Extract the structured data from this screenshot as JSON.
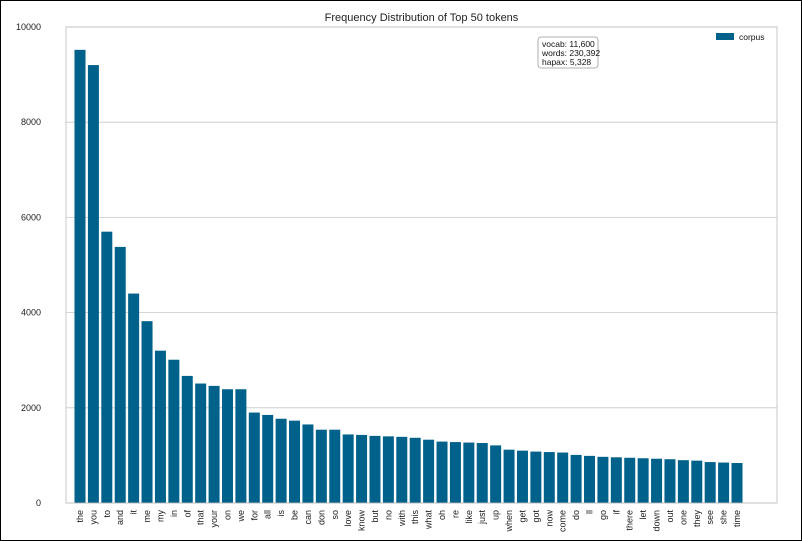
{
  "chart_data": {
    "type": "bar",
    "title": "Frequency Distribution of Top 50 tokens",
    "xlabel": "",
    "ylabel": "",
    "ylim": [
      0,
      10000
    ],
    "yticks": [
      "0",
      "2000",
      "4000",
      "6000",
      "8000",
      "10000"
    ],
    "grid": true,
    "legend": {
      "placement": "top-right",
      "label": "corpus"
    },
    "bar_color": "#00628b",
    "annotation_box": [
      "vocab: 11,600",
      "words: 230,392",
      "hapax: 5,328"
    ],
    "categories": [
      "the",
      "you",
      "to",
      "and",
      "it",
      "me",
      "my",
      "in",
      "of",
      "that",
      "your",
      "on",
      "we",
      "for",
      "all",
      "is",
      "be",
      "can",
      "don",
      "so",
      "love",
      "know",
      "but",
      "no",
      "with",
      "this",
      "what",
      "oh",
      "re",
      "like",
      "just",
      "up",
      "when",
      "get",
      "got",
      "now",
      "come",
      "do",
      "ll",
      "go",
      "if",
      "there",
      "let",
      "down",
      "out",
      "one",
      "they",
      "see",
      "she",
      "time"
    ],
    "values": [
      9520,
      9200,
      5700,
      5380,
      4400,
      3820,
      3200,
      3010,
      2670,
      2510,
      2460,
      2390,
      2390,
      1900,
      1850,
      1770,
      1730,
      1650,
      1540,
      1540,
      1440,
      1430,
      1410,
      1400,
      1390,
      1370,
      1330,
      1290,
      1280,
      1270,
      1260,
      1210,
      1120,
      1100,
      1080,
      1070,
      1060,
      1010,
      990,
      970,
      960,
      950,
      940,
      930,
      920,
      900,
      890,
      860,
      850,
      840
    ]
  }
}
